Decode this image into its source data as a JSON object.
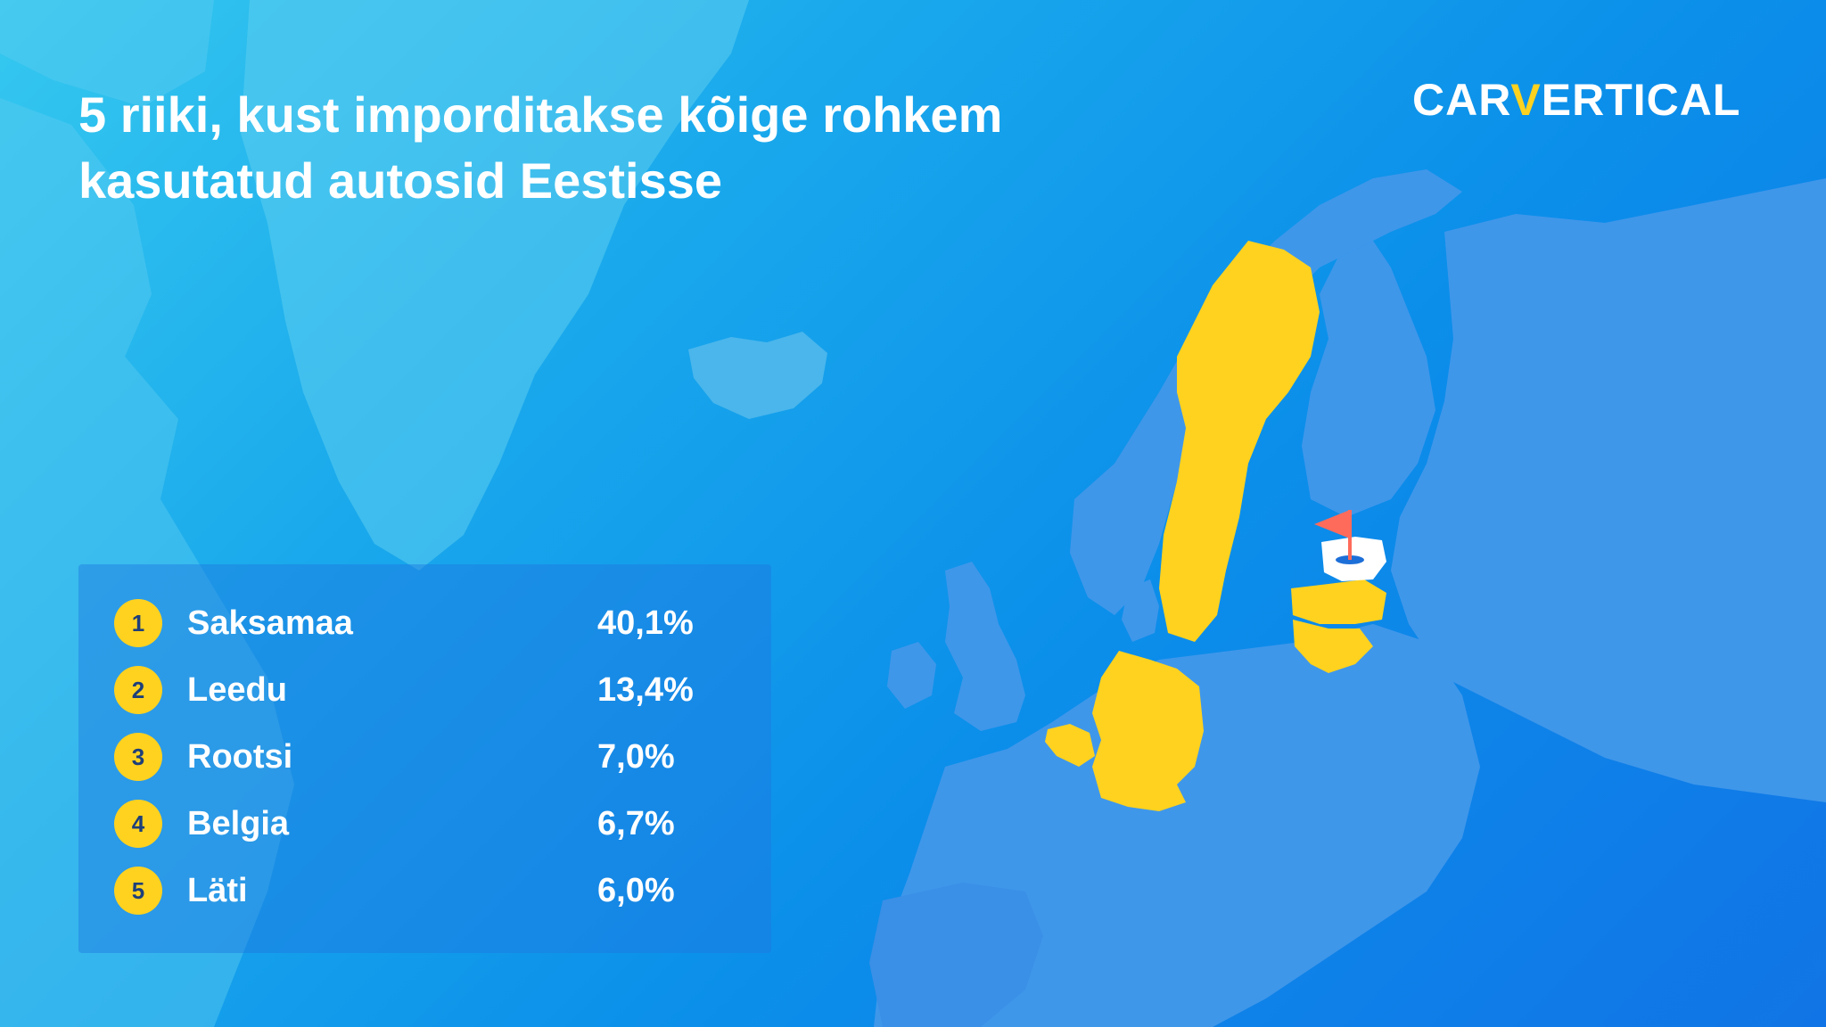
{
  "title": {
    "line1": "5 riiki, kust imporditakse kõige rohkem",
    "line2": "kasutatud autosid Eestisse"
  },
  "logo": {
    "part1": "CAR",
    "part2": "V",
    "part3": "ERTICAL"
  },
  "ranking": [
    {
      "rank": "1",
      "country": "Saksamaa",
      "share": "40,1%"
    },
    {
      "rank": "2",
      "country": "Leedu",
      "share": "13,4%"
    },
    {
      "rank": "3",
      "country": "Rootsi",
      "share": "7,0%"
    },
    {
      "rank": "4",
      "country": "Belgia",
      "share": "6,7%"
    },
    {
      "rank": "5",
      "country": "Läti",
      "share": "6,0%"
    }
  ],
  "colors": {
    "highlight": "#ffd21f",
    "land": "#3f97ea",
    "land_light": "#5cc3ef",
    "destination": "#ffffff",
    "flag": "#ff6b5b"
  },
  "map": {
    "highlighted_countries": [
      "Germany",
      "Lithuania",
      "Sweden",
      "Belgium",
      "Latvia"
    ],
    "destination_country": "Estonia",
    "marker_icon": "flag-pin-icon"
  }
}
